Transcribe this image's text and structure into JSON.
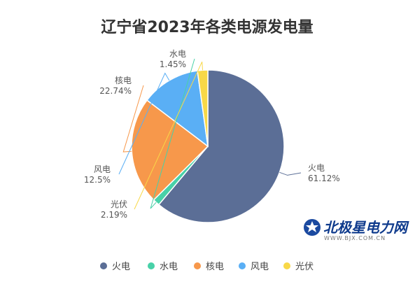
{
  "chart_data": {
    "type": "pie",
    "title": "辽宁省2023年各类电源发电量",
    "categories": [
      "火电",
      "水电",
      "核电",
      "风电",
      "光伏"
    ],
    "values": [
      61.12,
      1.45,
      22.74,
      12.5,
      2.19
    ],
    "value_labels": [
      "61.12%",
      "1.45%",
      "22.74%",
      "12.5%",
      "2.19%"
    ],
    "colors": [
      "#5b6e96",
      "#48d1a8",
      "#f7984b",
      "#5aaff5",
      "#f8d848"
    ],
    "legend_position": "bottom",
    "start_angle_deg": 90,
    "direction": "clockwise"
  },
  "watermark": {
    "brand": "北极星电力网",
    "url": "WWW.BJX.COM.CN"
  }
}
